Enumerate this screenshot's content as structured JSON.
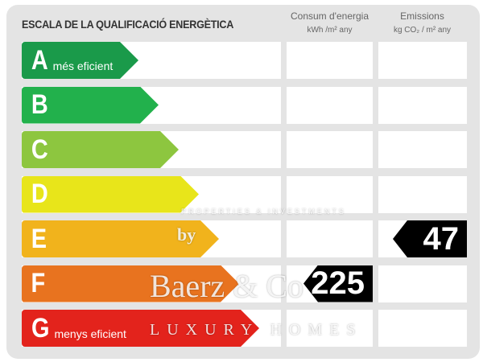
{
  "header": {
    "title": "ESCALA DE LA QUALIFICACIÓ ENERGÈTICA",
    "consumption_label": "Consum d'energia",
    "consumption_unit": "kWh /m² any",
    "emissions_label": "Emissions",
    "emissions_unit": "kg CO₂ / m² any"
  },
  "rows": [
    {
      "letter": "A",
      "sub": "més eficient",
      "color": "#1a9a4a"
    },
    {
      "letter": "B",
      "sub": "",
      "color": "#22b14c"
    },
    {
      "letter": "C",
      "sub": "",
      "color": "#8dc63f"
    },
    {
      "letter": "D",
      "sub": "",
      "color": "#e8e51a"
    },
    {
      "letter": "E",
      "sub": "",
      "color": "#f1b31c"
    },
    {
      "letter": "F",
      "sub": "",
      "color": "#e8731f"
    },
    {
      "letter": "G",
      "sub": "menys eficient",
      "color": "#e3231c"
    }
  ],
  "consumption": {
    "value": "225",
    "rating": "F"
  },
  "emissions": {
    "value": "47",
    "rating": "E"
  },
  "watermark": {
    "by": "by",
    "brand": "Baerz & Co",
    "tagline": "LUXURY HOMES",
    "sub": "PROPERTIES & INVESTMENTS"
  }
}
